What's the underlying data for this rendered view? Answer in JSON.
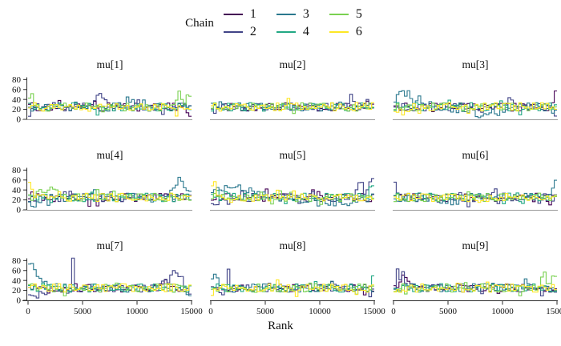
{
  "legend": {
    "title": "Chain"
  },
  "chart_data": {
    "type": "line",
    "subtype": "mcmc_rank_overlay_step_histogram",
    "title": "",
    "x": {
      "label": "Rank",
      "min": 0,
      "max": 15000,
      "ticks": [
        0,
        5000,
        10000,
        15000
      ]
    },
    "y": {
      "min": 0,
      "max": 80,
      "ticks": [
        0,
        20,
        40,
        60,
        80
      ]
    },
    "n_bins": 60,
    "baseline": 25,
    "noise_amplitude": 8.5,
    "grid": false,
    "legend_position": "top-center",
    "colors": {
      "axis": "#2b2b2b",
      "baseline": "#9a9a9a",
      "text": "#111111",
      "background": "#ffffff"
    },
    "chains": [
      {
        "label": "1",
        "color": "#440154"
      },
      {
        "label": "2",
        "color": "#414487"
      },
      {
        "label": "3",
        "color": "#2a788e"
      },
      {
        "label": "4",
        "color": "#22a884"
      },
      {
        "label": "5",
        "color": "#7ad151"
      },
      {
        "label": "6",
        "color": "#fde725"
      }
    ],
    "panels": [
      {
        "title": "mu[1]",
        "features": [
          {
            "chain": 5,
            "pos": 0.015,
            "value": 62,
            "width": 0.01
          },
          {
            "chain": 2,
            "pos": 0.44,
            "value": 50,
            "width": 0.022
          },
          {
            "chain": 3,
            "pos": 0.62,
            "value": 44,
            "width": 0.02
          },
          {
            "chain": 5,
            "pos": 0.93,
            "value": 56,
            "width": 0.014
          },
          {
            "chain": 5,
            "pos": 0.99,
            "value": 48,
            "width": 0.01
          },
          {
            "chain": 1,
            "pos": 1.0,
            "value": 6,
            "width": 0.012
          }
        ]
      },
      {
        "title": "mu[2]",
        "features": [
          {
            "chain": 2,
            "pos": 0.87,
            "value": 52,
            "width": 0.01
          },
          {
            "chain": 2,
            "pos": 0.97,
            "value": 40,
            "width": 0.012
          }
        ]
      },
      {
        "title": "mu[3]",
        "features": [
          {
            "chain": 3,
            "pos": 0.07,
            "value": 52,
            "width": 0.07
          },
          {
            "chain": 3,
            "pos": 0.55,
            "value": 11,
            "width": 0.1
          },
          {
            "chain": 2,
            "pos": 0.72,
            "value": 54,
            "width": 0.01
          },
          {
            "chain": 1,
            "pos": 1.0,
            "value": 62,
            "width": 0.008
          },
          {
            "chain": 3,
            "pos": 0.98,
            "value": 8,
            "width": 0.015
          },
          {
            "chain": 6,
            "pos": 0.04,
            "value": 14,
            "width": 0.03
          }
        ]
      },
      {
        "title": "mu[4]",
        "features": [
          {
            "chain": 6,
            "pos": 0.005,
            "value": 54,
            "width": 0.008
          },
          {
            "chain": 1,
            "pos": 0.01,
            "value": 48,
            "width": 0.006
          },
          {
            "chain": 3,
            "pos": 0.03,
            "value": 13,
            "width": 0.03
          },
          {
            "chain": 5,
            "pos": 0.12,
            "value": 44,
            "width": 0.04
          },
          {
            "chain": 3,
            "pos": 0.93,
            "value": 58,
            "width": 0.035
          },
          {
            "chain": 3,
            "pos": 1.0,
            "value": 30,
            "width": 0.02
          }
        ]
      },
      {
        "title": "mu[5]",
        "features": [
          {
            "chain": 6,
            "pos": 0.01,
            "value": 56,
            "width": 0.012
          },
          {
            "chain": 3,
            "pos": 0.13,
            "value": 50,
            "width": 0.09
          },
          {
            "chain": 3,
            "pos": 0.8,
            "value": 14,
            "width": 0.1
          },
          {
            "chain": 2,
            "pos": 0.05,
            "value": 15,
            "width": 0.05
          },
          {
            "chain": 2,
            "pos": 0.92,
            "value": 66,
            "width": 0.012
          },
          {
            "chain": 2,
            "pos": 1.0,
            "value": 58,
            "width": 0.025
          },
          {
            "chain": 4,
            "pos": 0.99,
            "value": 48,
            "width": 0.012
          }
        ]
      },
      {
        "title": "mu[6]",
        "features": [
          {
            "chain": 2,
            "pos": 0.005,
            "value": 58,
            "width": 0.007
          },
          {
            "chain": 2,
            "pos": 0.62,
            "value": 46,
            "width": 0.009
          },
          {
            "chain": 3,
            "pos": 0.995,
            "value": 56,
            "width": 0.009
          },
          {
            "chain": 3,
            "pos": 0.35,
            "value": 14,
            "width": 0.05
          }
        ]
      },
      {
        "title": "mu[7]",
        "features": [
          {
            "chain": 3,
            "pos": 0.01,
            "value": 68,
            "width": 0.05
          },
          {
            "chain": 2,
            "pos": 0.05,
            "value": 7,
            "width": 0.04
          },
          {
            "chain": 2,
            "pos": 0.27,
            "value": 84,
            "width": 0.005
          },
          {
            "chain": 2,
            "pos": 0.9,
            "value": 52,
            "width": 0.04
          },
          {
            "chain": 2,
            "pos": 1.0,
            "value": 12,
            "width": 0.01
          },
          {
            "chain": 3,
            "pos": 0.99,
            "value": 6,
            "width": 0.015
          }
        ]
      },
      {
        "title": "mu[8]",
        "features": [
          {
            "chain": 3,
            "pos": 0.025,
            "value": 58,
            "width": 0.018
          },
          {
            "chain": 2,
            "pos": 0.1,
            "value": 64,
            "width": 0.007
          },
          {
            "chain": 2,
            "pos": 0.05,
            "value": 12,
            "width": 0.03
          },
          {
            "chain": 4,
            "pos": 0.995,
            "value": 58,
            "width": 0.007
          },
          {
            "chain": 2,
            "pos": 0.98,
            "value": 12,
            "width": 0.012
          }
        ]
      },
      {
        "title": "mu[9]",
        "features": [
          {
            "chain": 2,
            "pos": 0.02,
            "value": 60,
            "width": 0.01
          },
          {
            "chain": 2,
            "pos": 0.05,
            "value": 50,
            "width": 0.008
          },
          {
            "chain": 1,
            "pos": 0.06,
            "value": 44,
            "width": 0.035
          },
          {
            "chain": 5,
            "pos": 0.93,
            "value": 50,
            "width": 0.015
          },
          {
            "chain": 5,
            "pos": 0.99,
            "value": 52,
            "width": 0.012
          },
          {
            "chain": 2,
            "pos": 0.995,
            "value": 8,
            "width": 0.01
          },
          {
            "chain": 6,
            "pos": 0.03,
            "value": 14,
            "width": 0.02
          }
        ]
      }
    ]
  }
}
